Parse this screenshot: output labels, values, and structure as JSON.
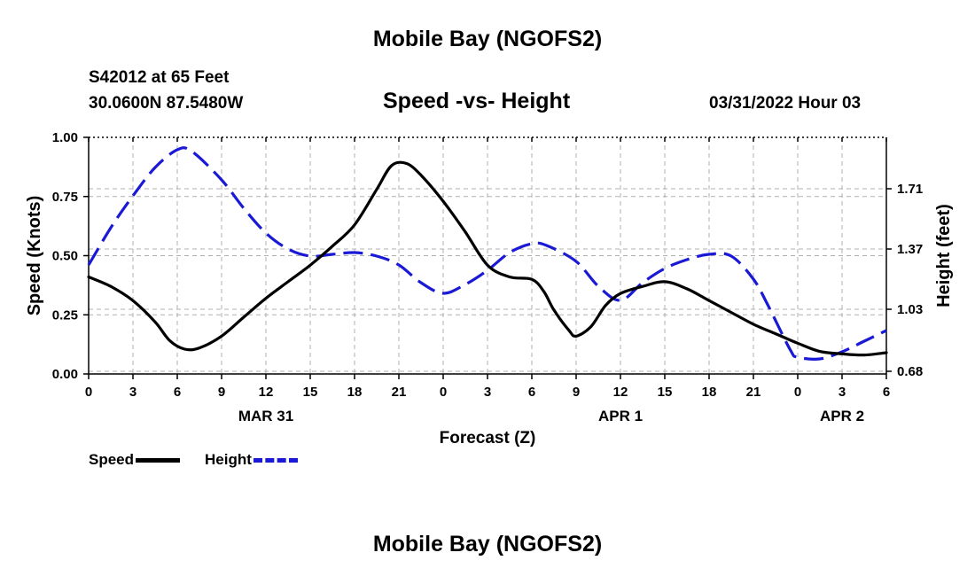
{
  "header": {
    "title": "Mobile Bay (NGOFS2)",
    "station": "S42012 at 65 Feet",
    "coords": "30.0600N  87.5480W",
    "subtitle": "Speed -vs- Height",
    "datetime": "03/31/2022 Hour 03"
  },
  "footer": {
    "title": "Mobile Bay (NGOFS2)"
  },
  "colors": {
    "speed": "#000000",
    "height": "#1a1ad6",
    "grid": "#b0b0b0"
  },
  "chart_data": {
    "type": "line",
    "title": "Speed -vs- Height",
    "xlabel": "Forecast (Z)",
    "ylabel": "Speed (Knots)",
    "y2label": "Height (feet)",
    "x_range": [
      0,
      54
    ],
    "x_tick_values": [
      0,
      3,
      6,
      9,
      12,
      15,
      18,
      21,
      24,
      27,
      30,
      33,
      36,
      39,
      42,
      45,
      48,
      51,
      54
    ],
    "x_tick_labels": [
      "0",
      "3",
      "6",
      "9",
      "12",
      "15",
      "18",
      "21",
      "0",
      "3",
      "6",
      "9",
      "12",
      "15",
      "18",
      "21",
      "0",
      "3",
      "6"
    ],
    "date_labels": [
      {
        "hour": 12,
        "label": "MAR 31"
      },
      {
        "hour": 36,
        "label": "APR 1"
      },
      {
        "hour": 51,
        "label": "APR 2"
      }
    ],
    "ylim": [
      0,
      1.0
    ],
    "y_ticks": [
      0.0,
      0.25,
      0.5,
      0.75,
      1.0
    ],
    "y_tick_labels": [
      "0.00",
      "0.25",
      "0.50",
      "0.75",
      "1.00"
    ],
    "y2lim": [
      0.665,
      2.0
    ],
    "y2_ticks": [
      0.68,
      1.03,
      1.37,
      1.71
    ],
    "y2_tick_labels": [
      "0.68",
      "1.03",
      "1.37",
      "1.71"
    ],
    "grid": true,
    "legend_position": "bottom-left",
    "series": [
      {
        "name": "Speed",
        "axis": "left",
        "style": "solid",
        "x": [
          0,
          1.5,
          3,
          4.5,
          5.5,
          6.5,
          7.5,
          9,
          10.5,
          12,
          13.5,
          15,
          16.5,
          18,
          19.5,
          20.5,
          21.5,
          22.5,
          24,
          25.5,
          27,
          28.5,
          30,
          30.8,
          31.5,
          32.5,
          33,
          34,
          35,
          36,
          37.5,
          39,
          40.5,
          42,
          43.5,
          45,
          46.5,
          48,
          49.5,
          51,
          52.5,
          54
        ],
        "values": [
          0.41,
          0.37,
          0.31,
          0.22,
          0.14,
          0.105,
          0.11,
          0.16,
          0.24,
          0.32,
          0.39,
          0.46,
          0.54,
          0.63,
          0.78,
          0.88,
          0.89,
          0.84,
          0.73,
          0.6,
          0.46,
          0.41,
          0.4,
          0.35,
          0.27,
          0.185,
          0.16,
          0.2,
          0.29,
          0.34,
          0.37,
          0.39,
          0.36,
          0.31,
          0.26,
          0.21,
          0.17,
          0.13,
          0.095,
          0.085,
          0.08,
          0.09
        ]
      },
      {
        "name": "Height",
        "axis": "right",
        "style": "dashed",
        "x": [
          0,
          1.5,
          3,
          4.5,
          6,
          7,
          9,
          10.5,
          12,
          13.5,
          15,
          16.5,
          18,
          19.5,
          21,
          22.5,
          24,
          25.5,
          27,
          28.5,
          30,
          31,
          33,
          34.5,
          36,
          37.5,
          39,
          40.5,
          42,
          43.5,
          45,
          46,
          47.5,
          48,
          49.5,
          51,
          52.5,
          54
        ],
        "values": [
          1.28,
          1.49,
          1.67,
          1.83,
          1.93,
          1.92,
          1.76,
          1.6,
          1.46,
          1.37,
          1.33,
          1.34,
          1.35,
          1.33,
          1.28,
          1.18,
          1.12,
          1.17,
          1.25,
          1.35,
          1.4,
          1.39,
          1.3,
          1.16,
          1.08,
          1.18,
          1.26,
          1.31,
          1.34,
          1.33,
          1.2,
          1.05,
          0.8,
          0.76,
          0.75,
          0.79,
          0.85,
          0.91
        ]
      }
    ]
  }
}
